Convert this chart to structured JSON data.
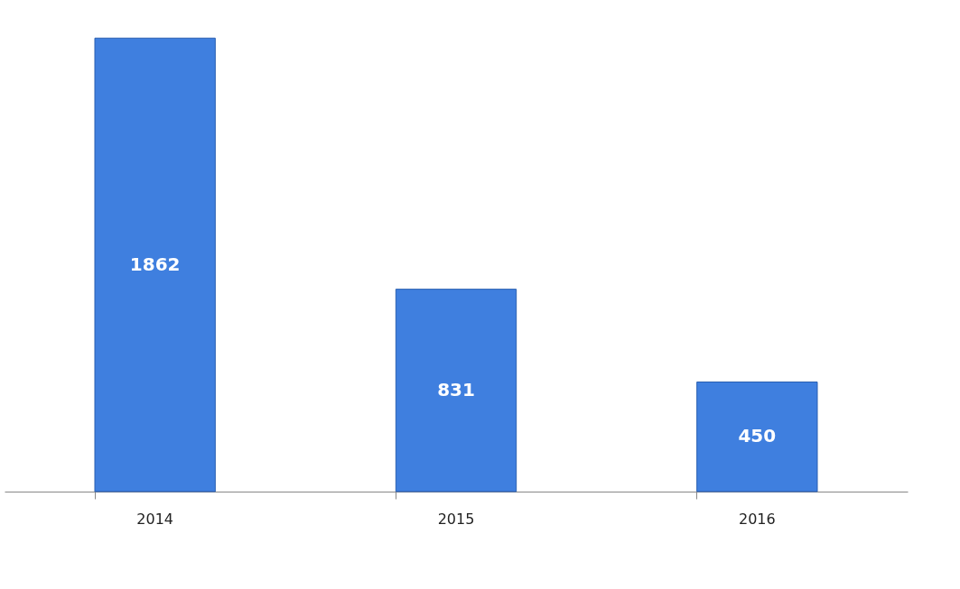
{
  "chart_data": {
    "type": "bar",
    "categories": [
      "2014",
      "2015",
      "2016"
    ],
    "values": [
      1862,
      831,
      450
    ],
    "color": "#3f7fdf",
    "data_labels": true,
    "grid": false
  }
}
